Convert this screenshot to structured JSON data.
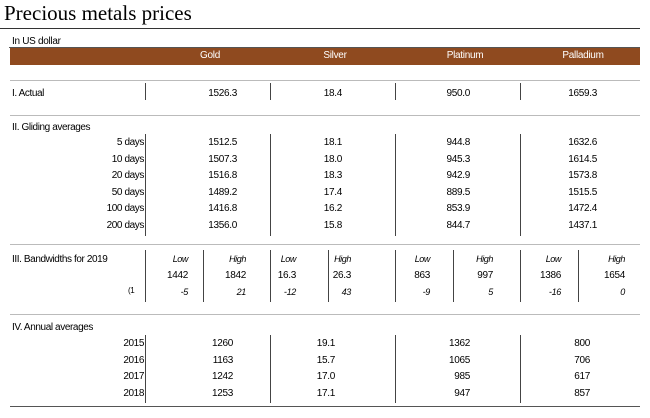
{
  "title": "Precious metals prices",
  "unit": "In US dollar",
  "columns": [
    "Gold",
    "Silver",
    "Platinum",
    "Palladium"
  ],
  "sections": {
    "actual": {
      "label": "I. Actual",
      "values": [
        "1526.3",
        "18.4",
        "950.0",
        "1659.3"
      ]
    },
    "gliding": {
      "label": "II. Gliding averages",
      "rows": [
        {
          "label": "5 days",
          "values": [
            "1512.5",
            "18.1",
            "944.8",
            "1632.6"
          ]
        },
        {
          "label": "10 days",
          "values": [
            "1507.3",
            "18.0",
            "945.3",
            "1614.5"
          ]
        },
        {
          "label": "20 days",
          "values": [
            "1516.8",
            "18.3",
            "942.9",
            "1573.8"
          ]
        },
        {
          "label": "50 days",
          "values": [
            "1489.2",
            "17.4",
            "889.5",
            "1515.5"
          ]
        },
        {
          "label": "100 days",
          "values": [
            "1416.8",
            "16.2",
            "853.9",
            "1472.4"
          ]
        },
        {
          "label": "200 days",
          "values": [
            "1356.0",
            "15.8",
            "844.7",
            "1437.1"
          ]
        }
      ]
    },
    "bandwidths": {
      "label": "III. Bandwidths for 2019",
      "low_label": "Low",
      "high_label": "High",
      "values_row": [
        "1442",
        "1842",
        "16.3",
        "26.3",
        "863",
        "997",
        "1386",
        "1654"
      ],
      "pct_marker": "(1",
      "pct_row": [
        "-5",
        "21",
        "-12",
        "43",
        "-9",
        "5",
        "-16",
        "0"
      ]
    },
    "annual": {
      "label": "IV. Annual averages",
      "rows": [
        {
          "label": "2015",
          "values": [
            "1260",
            "19.1",
            "1362",
            "800"
          ]
        },
        {
          "label": "2016",
          "values": [
            "1163",
            "15.7",
            "1065",
            "706"
          ]
        },
        {
          "label": "2017",
          "values": [
            "1242",
            "17.0",
            "985",
            "617"
          ]
        },
        {
          "label": "2018",
          "values": [
            "1253",
            "17.1",
            "947",
            "857"
          ]
        }
      ]
    }
  },
  "colors": {
    "header_bg": "#8f4a1f",
    "header_text": "#ffffff"
  }
}
